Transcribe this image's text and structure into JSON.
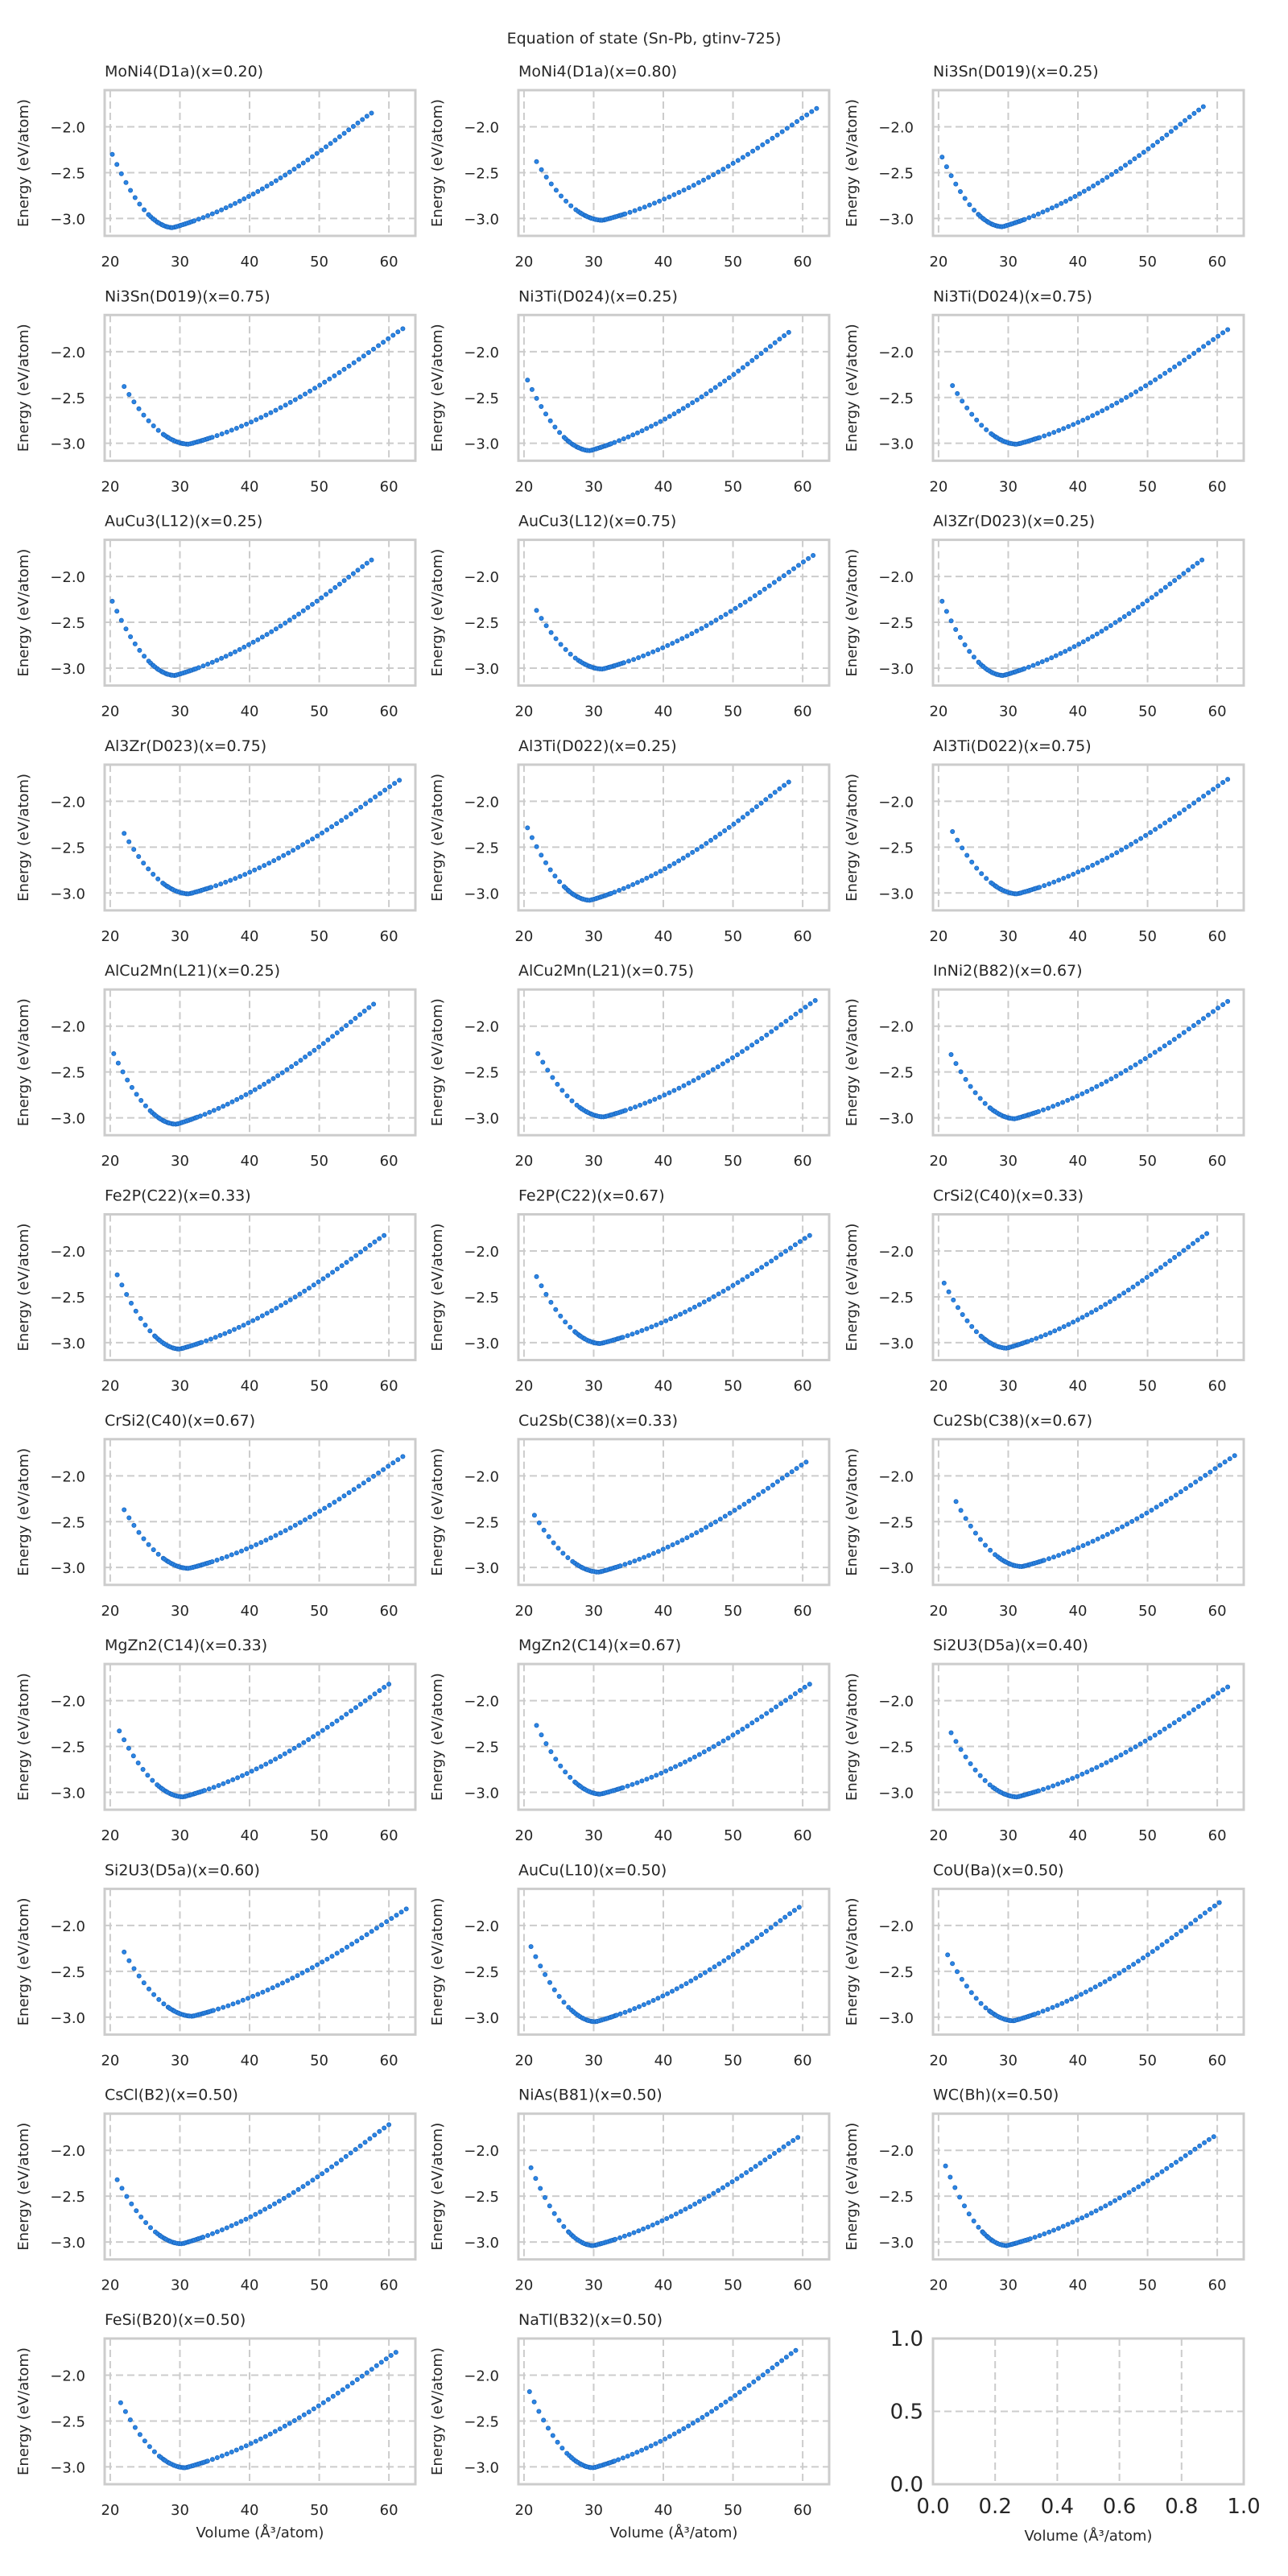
{
  "chart_data": {
    "type": "scatter",
    "title": "Equation of state (Sn-Pb, gtinv-725)",
    "xlabel": "Volume (Å³/atom)",
    "ylabel": "Energy (eV/atom)",
    "xlim": [
      19.2,
      63.8
    ],
    "ylim": [
      -3.19,
      -1.6
    ],
    "xticks": [
      20,
      30,
      40,
      50,
      60
    ],
    "yticks": [
      -3.0,
      -2.5,
      -2.0
    ],
    "xtick_labels": [
      "20",
      "30",
      "40",
      "50",
      "60"
    ],
    "ytick_labels": [
      "−3.0",
      "−2.5",
      "−2.0"
    ],
    "grid": true,
    "layout": {
      "rows": 11,
      "cols": 3
    },
    "marker_color": "#2b85e4",
    "panels": [
      {
        "title": "MoNi4(D1a)(x=0.20)",
        "v_start": 20.3,
        "e_start": -2.3,
        "v_min": 29.0,
        "e_min": -3.1,
        "v_end": 57.5,
        "e_end": -1.85
      },
      {
        "title": "MoNi4(D1a)(x=0.80)",
        "v_start": 21.8,
        "e_start": -2.38,
        "v_min": 31.3,
        "e_min": -3.02,
        "v_end": 62.0,
        "e_end": -1.8
      },
      {
        "title": "Ni3Sn(D019)(x=0.25)",
        "v_start": 20.5,
        "e_start": -2.33,
        "v_min": 29.2,
        "e_min": -3.09,
        "v_end": 58.0,
        "e_end": -1.78
      },
      {
        "title": "Ni3Sn(D019)(x=0.75)",
        "v_start": 22.0,
        "e_start": -2.38,
        "v_min": 31.3,
        "e_min": -3.01,
        "v_end": 62.0,
        "e_end": -1.75
      },
      {
        "title": "Ni3Ti(D024)(x=0.25)",
        "v_start": 20.5,
        "e_start": -2.31,
        "v_min": 29.5,
        "e_min": -3.08,
        "v_end": 58.0,
        "e_end": -1.79
      },
      {
        "title": "Ni3Ti(D024)(x=0.75)",
        "v_start": 22.0,
        "e_start": -2.37,
        "v_min": 31.3,
        "e_min": -3.01,
        "v_end": 61.5,
        "e_end": -1.76
      },
      {
        "title": "AuCu3(L12)(x=0.25)",
        "v_start": 20.3,
        "e_start": -2.27,
        "v_min": 29.3,
        "e_min": -3.08,
        "v_end": 57.5,
        "e_end": -1.82
      },
      {
        "title": "AuCu3(L12)(x=0.75)",
        "v_start": 21.8,
        "e_start": -2.37,
        "v_min": 31.3,
        "e_min": -3.01,
        "v_end": 61.5,
        "e_end": -1.77
      },
      {
        "title": "Al3Zr(D023)(x=0.25)",
        "v_start": 20.5,
        "e_start": -2.27,
        "v_min": 29.3,
        "e_min": -3.08,
        "v_end": 57.8,
        "e_end": -1.82
      },
      {
        "title": "Al3Zr(D023)(x=0.75)",
        "v_start": 22.0,
        "e_start": -2.35,
        "v_min": 31.3,
        "e_min": -3.01,
        "v_end": 61.5,
        "e_end": -1.77
      },
      {
        "title": "Al3Ti(D022)(x=0.25)",
        "v_start": 20.5,
        "e_start": -2.29,
        "v_min": 29.5,
        "e_min": -3.08,
        "v_end": 58.0,
        "e_end": -1.79
      },
      {
        "title": "Al3Ti(D022)(x=0.75)",
        "v_start": 22.0,
        "e_start": -2.33,
        "v_min": 31.3,
        "e_min": -3.01,
        "v_end": 61.5,
        "e_end": -1.76
      },
      {
        "title": "AlCu2Mn(L21)(x=0.25)",
        "v_start": 20.5,
        "e_start": -2.3,
        "v_min": 29.5,
        "e_min": -3.07,
        "v_end": 57.8,
        "e_end": -1.76
      },
      {
        "title": "AlCu2Mn(L21)(x=0.75)",
        "v_start": 22.0,
        "e_start": -2.3,
        "v_min": 31.5,
        "e_min": -2.99,
        "v_end": 61.8,
        "e_end": -1.72
      },
      {
        "title": "InNi2(B82)(x=0.67)",
        "v_start": 21.8,
        "e_start": -2.31,
        "v_min": 31.0,
        "e_min": -3.01,
        "v_end": 61.5,
        "e_end": -1.73
      },
      {
        "title": "Fe2P(C22)(x=0.33)",
        "v_start": 21.0,
        "e_start": -2.26,
        "v_min": 30.0,
        "e_min": -3.07,
        "v_end": 59.3,
        "e_end": -1.83
      },
      {
        "title": "Fe2P(C22)(x=0.67)",
        "v_start": 21.8,
        "e_start": -2.28,
        "v_min": 31.0,
        "e_min": -3.01,
        "v_end": 61.0,
        "e_end": -1.83
      },
      {
        "title": "CrSi2(C40)(x=0.33)",
        "v_start": 20.8,
        "e_start": -2.35,
        "v_min": 29.8,
        "e_min": -3.06,
        "v_end": 58.5,
        "e_end": -1.81
      },
      {
        "title": "CrSi2(C40)(x=0.67)",
        "v_start": 22.0,
        "e_start": -2.37,
        "v_min": 31.3,
        "e_min": -3.01,
        "v_end": 62.0,
        "e_end": -1.79
      },
      {
        "title": "Cu2Sb(C38)(x=0.33)",
        "v_start": 21.5,
        "e_start": -2.43,
        "v_min": 30.8,
        "e_min": -3.05,
        "v_end": 60.5,
        "e_end": -1.85
      },
      {
        "title": "Cu2Sb(C38)(x=0.67)",
        "v_start": 22.5,
        "e_start": -2.28,
        "v_min": 32.0,
        "e_min": -2.99,
        "v_end": 62.5,
        "e_end": -1.78
      },
      {
        "title": "MgZn2(C14)(x=0.33)",
        "v_start": 21.3,
        "e_start": -2.33,
        "v_min": 30.5,
        "e_min": -3.05,
        "v_end": 60.0,
        "e_end": -1.82
      },
      {
        "title": "MgZn2(C14)(x=0.67)",
        "v_start": 21.8,
        "e_start": -2.27,
        "v_min": 31.0,
        "e_min": -3.02,
        "v_end": 61.0,
        "e_end": -1.82
      },
      {
        "title": "Si2U3(D5a)(x=0.40)",
        "v_start": 21.8,
        "e_start": -2.35,
        "v_min": 31.3,
        "e_min": -3.05,
        "v_end": 61.5,
        "e_end": -1.85
      },
      {
        "title": "Si2U3(D5a)(x=0.60)",
        "v_start": 22.0,
        "e_start": -2.29,
        "v_min": 31.8,
        "e_min": -2.99,
        "v_end": 62.5,
        "e_end": -1.82
      },
      {
        "title": "AuCu(L10)(x=0.50)",
        "v_start": 21.0,
        "e_start": -2.23,
        "v_min": 30.3,
        "e_min": -3.05,
        "v_end": 59.5,
        "e_end": -1.8
      },
      {
        "title": "CoU(Ba)(x=0.50)",
        "v_start": 21.3,
        "e_start": -2.32,
        "v_min": 30.8,
        "e_min": -3.04,
        "v_end": 60.3,
        "e_end": -1.75
      },
      {
        "title": "CsCl(B2)(x=0.50)",
        "v_start": 21.0,
        "e_start": -2.32,
        "v_min": 30.3,
        "e_min": -3.02,
        "v_end": 60.0,
        "e_end": -1.72
      },
      {
        "title": "NiAs(B81)(x=0.50)",
        "v_start": 21.0,
        "e_start": -2.19,
        "v_min": 30.0,
        "e_min": -3.04,
        "v_end": 59.3,
        "e_end": -1.86
      },
      {
        "title": "WC(Bh)(x=0.50)",
        "v_start": 21.0,
        "e_start": -2.17,
        "v_min": 29.8,
        "e_min": -3.04,
        "v_end": 59.5,
        "e_end": -1.85
      },
      {
        "title": "FeSi(B20)(x=0.50)",
        "v_start": 21.5,
        "e_start": -2.3,
        "v_min": 30.8,
        "e_min": -3.01,
        "v_end": 61.0,
        "e_end": -1.75
      },
      {
        "title": "NaTl(B32)(x=0.50)",
        "v_start": 20.8,
        "e_start": -2.18,
        "v_min": 30.0,
        "e_min": -3.01,
        "v_end": 59.0,
        "e_end": -1.73
      }
    ],
    "empty_panel": {
      "xlim": [
        0,
        1
      ],
      "ylim": [
        0,
        1
      ],
      "xtick_labels": [
        "0.0",
        "0.2",
        "0.4",
        "0.6",
        "0.8",
        "1.0"
      ],
      "ytick_labels": [
        "0.0",
        "0.5",
        "1.0"
      ]
    }
  }
}
